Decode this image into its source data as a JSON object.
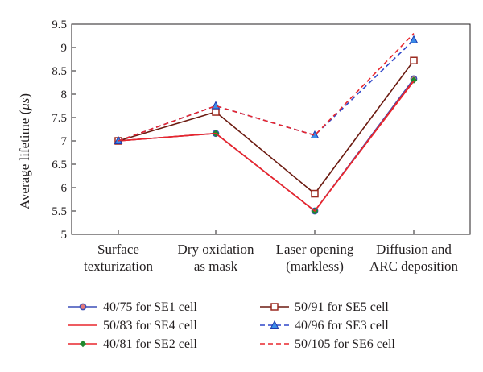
{
  "chart_data": {
    "type": "line",
    "categories": [
      [
        "Surface",
        "texturization"
      ],
      [
        "Dry oxidation",
        "as mask"
      ],
      [
        "Laser opening",
        "(markless)"
      ],
      [
        "Diffusion and",
        "ARC deposition"
      ]
    ],
    "ylabel_prefix": "Average lifetime (",
    "ylabel_unit": "μs",
    "ylabel_suffix": ")",
    "xlabel": "",
    "title": "",
    "ylim": [
      5,
      9.5
    ],
    "yticks": [
      "5",
      "5.5",
      "6",
      "6.5",
      "7",
      "7.5",
      "8",
      "8.5",
      "9",
      "9.5"
    ],
    "grid": false,
    "legend_position": "bottom",
    "series": [
      {
        "name": "40/75 for SE1 cell",
        "values": [
          7.0,
          7.16,
          5.5,
          8.33
        ],
        "color": "#3b4fb8",
        "line_color": "#3b4fb8",
        "marker": "circle",
        "marker_fill": "#e57878",
        "marker_stroke": "#3b4fb8",
        "dash": false
      },
      {
        "name": "50/83 for SE4 cell",
        "values": [
          7.0,
          7.16,
          5.5,
          8.28
        ],
        "color": "#e8262d",
        "line_color": "#e8262d",
        "marker": "none",
        "dash": false
      },
      {
        "name": "40/81 for SE2 cell",
        "values": [
          7.0,
          7.16,
          5.5,
          8.3
        ],
        "color": "#1e8a2e",
        "line_color": "#e8262d",
        "marker": "diamond",
        "marker_fill": "#1e8a2e",
        "marker_stroke": "#1e8a2e",
        "dash": false
      },
      {
        "name": "50/91 for SE5 cell",
        "values": [
          7.0,
          7.62,
          5.87,
          8.72
        ],
        "color": "#6b1a10",
        "line_color": "#6b1a10",
        "marker": "square",
        "marker_fill": "#ffffff",
        "marker_stroke": "#9b2a20",
        "dash": false
      },
      {
        "name": "40/96 for SE3 cell",
        "values": [
          7.0,
          7.75,
          7.12,
          9.16
        ],
        "color": "#2f46c9",
        "line_color": "#2f46c9",
        "marker": "triangle",
        "marker_fill": "#3c8de8",
        "marker_stroke": "#1f3ab0",
        "dash": true
      },
      {
        "name": "50/105 for SE6 cell",
        "values": [
          7.0,
          7.75,
          7.12,
          9.3
        ],
        "color": "#e8262d",
        "line_color": "#e8262d",
        "marker": "none",
        "dash": true
      }
    ],
    "draw_order": [
      0,
      2,
      1,
      3,
      4,
      5
    ],
    "legend_rows": [
      [
        0,
        3
      ],
      [
        1,
        4
      ],
      [
        2,
        5
      ]
    ]
  }
}
